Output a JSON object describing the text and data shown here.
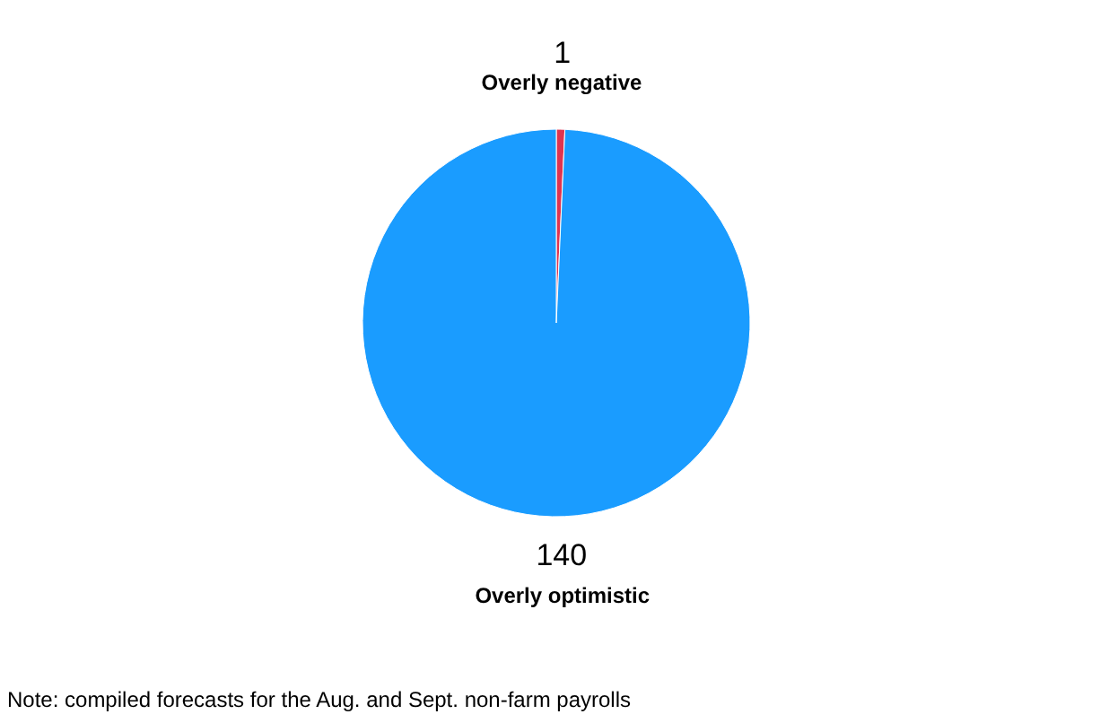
{
  "chart_data": {
    "type": "pie",
    "categories": [
      "Overly negative",
      "Overly optimistic"
    ],
    "values": [
      1,
      140
    ],
    "colors": [
      "#e0334f",
      "#1a9cff"
    ],
    "data_labels": true,
    "annotations": [
      "Note: compiled forecasts for the Aug. and Sept. non-farm payrolls"
    ]
  }
}
